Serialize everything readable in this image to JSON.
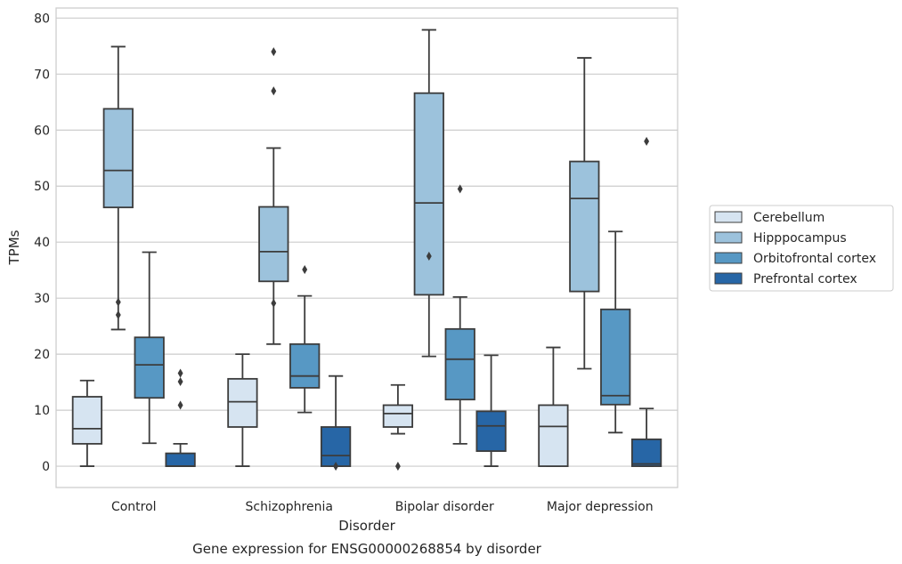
{
  "caption": "Gene expression for ENSG00000268854 by disorder",
  "chart_data": {
    "type": "box",
    "xlabel": "Disorder",
    "ylabel": "TPMs",
    "ylim": [
      -3.8,
      81.8
    ],
    "yticks": [
      0,
      10,
      20,
      30,
      40,
      50,
      60,
      70,
      80
    ],
    "grid": true,
    "legend_position": "right",
    "categories": [
      "Control",
      "Schizophrenia",
      "Bipolar disorder",
      "Major depression"
    ],
    "series": [
      {
        "name": "Cerebellum",
        "color": "#d6e4f1",
        "boxes": [
          {
            "whisker_low": 0,
            "q1": 4,
            "median": 6.7,
            "q3": 12.4,
            "whisker_high": 15.3,
            "outliers": []
          },
          {
            "whisker_low": 0,
            "q1": 7,
            "median": 11.5,
            "q3": 15.6,
            "whisker_high": 20,
            "outliers": []
          },
          {
            "whisker_low": 5.8,
            "q1": 7,
            "median": 9.4,
            "q3": 10.9,
            "whisker_high": 14.5,
            "outliers": [
              0
            ]
          },
          {
            "whisker_low": 0,
            "q1": 0,
            "median": 7.1,
            "q3": 10.9,
            "whisker_high": 21.2,
            "outliers": []
          }
        ]
      },
      {
        "name": "Hipppocampus",
        "color": "#9cc2dc",
        "boxes": [
          {
            "whisker_low": 24.4,
            "q1": 46.2,
            "median": 52.8,
            "q3": 63.8,
            "whisker_high": 74.9,
            "outliers": [
              27,
              29.3
            ]
          },
          {
            "whisker_low": 21.8,
            "q1": 33,
            "median": 38.3,
            "q3": 46.3,
            "whisker_high": 56.8,
            "outliers": [
              29.1,
              67,
              74
            ]
          },
          {
            "whisker_low": 19.6,
            "q1": 30.6,
            "median": 47,
            "q3": 66.6,
            "whisker_high": 77.9,
            "outliers": [
              37.5
            ]
          },
          {
            "whisker_low": 17.4,
            "q1": 31.2,
            "median": 47.8,
            "q3": 54.4,
            "whisker_high": 72.9,
            "outliers": []
          }
        ]
      },
      {
        "name": "Orbitofrontal cortex",
        "color": "#5798c4",
        "boxes": [
          {
            "whisker_low": 4.1,
            "q1": 12.2,
            "median": 18.1,
            "q3": 23,
            "whisker_high": 38.2,
            "outliers": []
          },
          {
            "whisker_low": 9.6,
            "q1": 14,
            "median": 16.1,
            "q3": 21.8,
            "whisker_high": 30.4,
            "outliers": [
              35.1
            ]
          },
          {
            "whisker_low": 4,
            "q1": 11.9,
            "median": 19.1,
            "q3": 24.5,
            "whisker_high": 30.2,
            "outliers": [
              49.5
            ]
          },
          {
            "whisker_low": 6,
            "q1": 11,
            "median": 12.6,
            "q3": 28,
            "whisker_high": 41.9,
            "outliers": []
          }
        ]
      },
      {
        "name": "Prefrontal cortex",
        "color": "#2766a6",
        "boxes": [
          {
            "whisker_low": 0,
            "q1": 0,
            "median": 0,
            "q3": 2.3,
            "whisker_high": 4,
            "outliers": [
              10.9,
              15.1,
              16.6
            ]
          },
          {
            "whisker_low": 0,
            "q1": 0,
            "median": 1.9,
            "q3": 7,
            "whisker_high": 16.1,
            "outliers": [
              0
            ]
          },
          {
            "whisker_low": 0,
            "q1": 2.7,
            "median": 7.2,
            "q3": 9.8,
            "whisker_high": 19.8,
            "outliers": []
          },
          {
            "whisker_low": 0,
            "q1": 0,
            "median": 0.4,
            "q3": 4.8,
            "whisker_high": 10.3,
            "outliers": [
              58
            ]
          }
        ]
      }
    ]
  }
}
